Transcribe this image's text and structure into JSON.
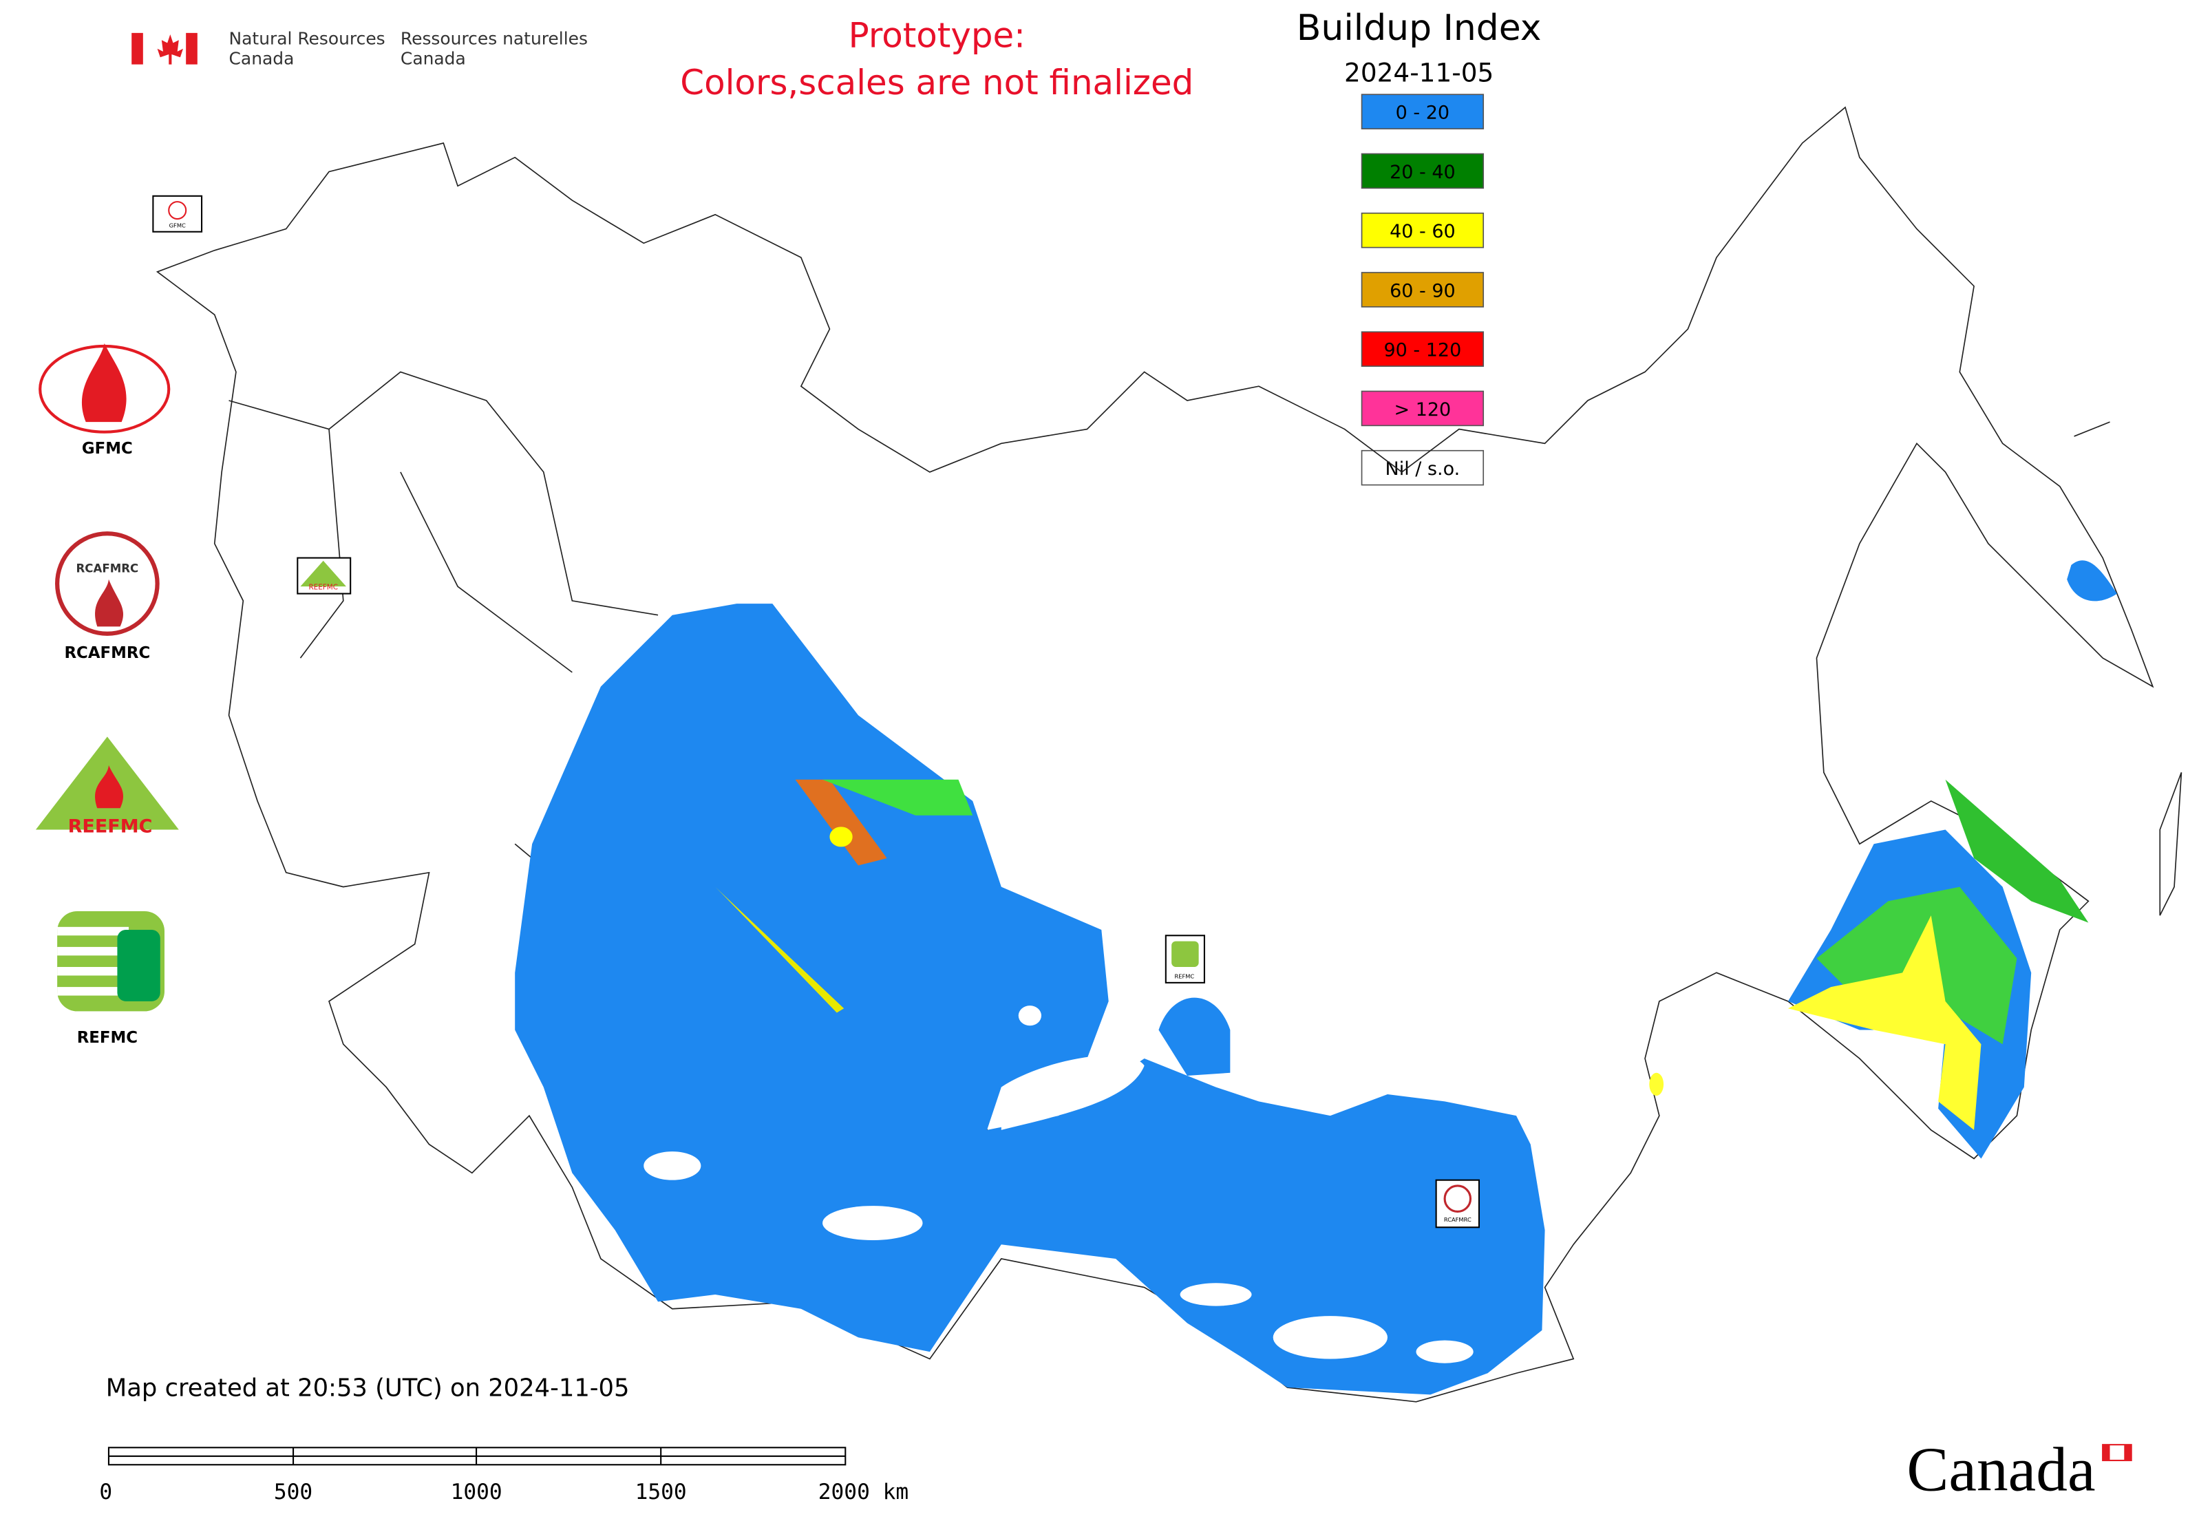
{
  "header": {
    "dept_en": [
      "Natural Resources",
      "Canada"
    ],
    "dept_fr": [
      "Ressources naturelles",
      "Canada"
    ]
  },
  "notice": [
    "Prototype:",
    "Colors,scales are not finalized"
  ],
  "legend": {
    "title": "Buildup Index",
    "date": "2024-11-05",
    "items": [
      {
        "label": "0 - 20",
        "color": "#1e88f0"
      },
      {
        "label": "20 - 40",
        "color": "#008000"
      },
      {
        "label": "40 - 60",
        "color": "#ffff00"
      },
      {
        "label": "60 - 90",
        "color": "#e0a000"
      },
      {
        "label": "90 - 120",
        "color": "#ff0000"
      },
      {
        "label": "> 120",
        "color": "#ff3399"
      },
      {
        "label": "Nil / s.o.",
        "color": "#ffffff"
      }
    ]
  },
  "logos": [
    "GFMC",
    "RCAFMRC",
    "REEFMC",
    "REFMC"
  ],
  "map_markers": [
    "GFMC",
    "REEFMC",
    "REFMC",
    "RCAFMRC"
  ],
  "footer": {
    "created": "Map created at 20:53 (UTC) on 2024-11-05",
    "scale_labels": [
      "0",
      "500",
      "1000",
      "1500",
      "2000 km"
    ],
    "wordmark": "Canada"
  }
}
